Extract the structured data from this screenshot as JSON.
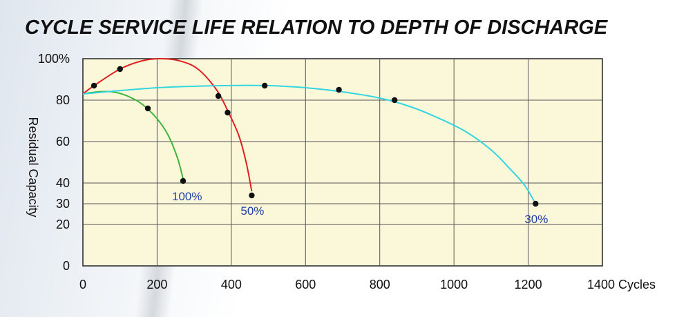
{
  "chart_data": {
    "type": "line",
    "title": "CYCLE SERVICE LIFE RELATION TO DEPTH OF DISCHARGE",
    "xlabel": "Cycles",
    "ylabel": "Residual Capacity",
    "xlim": [
      0,
      1400
    ],
    "ylim": [
      0,
      100
    ],
    "x_ticks": [
      0,
      200,
      400,
      600,
      800,
      1000,
      1200,
      1400
    ],
    "x_tick_labels": [
      "0",
      "200",
      "400",
      "600",
      "800",
      "1000",
      "1200",
      "1400 Cycles"
    ],
    "y_ticks": [
      0,
      20,
      30,
      40,
      60,
      80,
      100
    ],
    "y_tick_labels": [
      "0",
      "20",
      "30",
      "40",
      "60",
      "80",
      "100%"
    ],
    "grid": true,
    "plot_background": "#fbf8da",
    "series": [
      {
        "name": "100%",
        "color": "#3cb53c",
        "curve": [
          [
            0,
            83
          ],
          [
            40,
            84
          ],
          [
            80,
            84
          ],
          [
            120,
            82
          ],
          [
            160,
            78
          ],
          [
            200,
            71
          ],
          [
            230,
            63
          ],
          [
            255,
            52
          ],
          [
            270,
            42
          ]
        ],
        "points": [
          [
            175,
            76
          ],
          [
            270,
            41
          ]
        ]
      },
      {
        "name": "50%",
        "color": "#e02020",
        "curve": [
          [
            0,
            83
          ],
          [
            30,
            87
          ],
          [
            100,
            95
          ],
          [
            160,
            99
          ],
          [
            210,
            100
          ],
          [
            260,
            99
          ],
          [
            310,
            95
          ],
          [
            360,
            85
          ],
          [
            390,
            75
          ],
          [
            420,
            63
          ],
          [
            440,
            50
          ],
          [
            455,
            36
          ]
        ],
        "points": [
          [
            30,
            87
          ],
          [
            100,
            95
          ],
          [
            365,
            82
          ],
          [
            390,
            74
          ],
          [
            455,
            34
          ]
        ]
      },
      {
        "name": "30%",
        "color": "#33d6e0",
        "curve": [
          [
            0,
            83
          ],
          [
            200,
            86
          ],
          [
            380,
            87
          ],
          [
            500,
            87
          ],
          [
            600,
            86
          ],
          [
            700,
            84
          ],
          [
            800,
            81
          ],
          [
            880,
            77
          ],
          [
            950,
            72
          ],
          [
            1030,
            65
          ],
          [
            1100,
            56
          ],
          [
            1150,
            47
          ],
          [
            1190,
            39
          ],
          [
            1220,
            30
          ]
        ],
        "points": [
          [
            490,
            87
          ],
          [
            690,
            85
          ],
          [
            840,
            80
          ],
          [
            1220,
            30
          ]
        ]
      }
    ]
  }
}
